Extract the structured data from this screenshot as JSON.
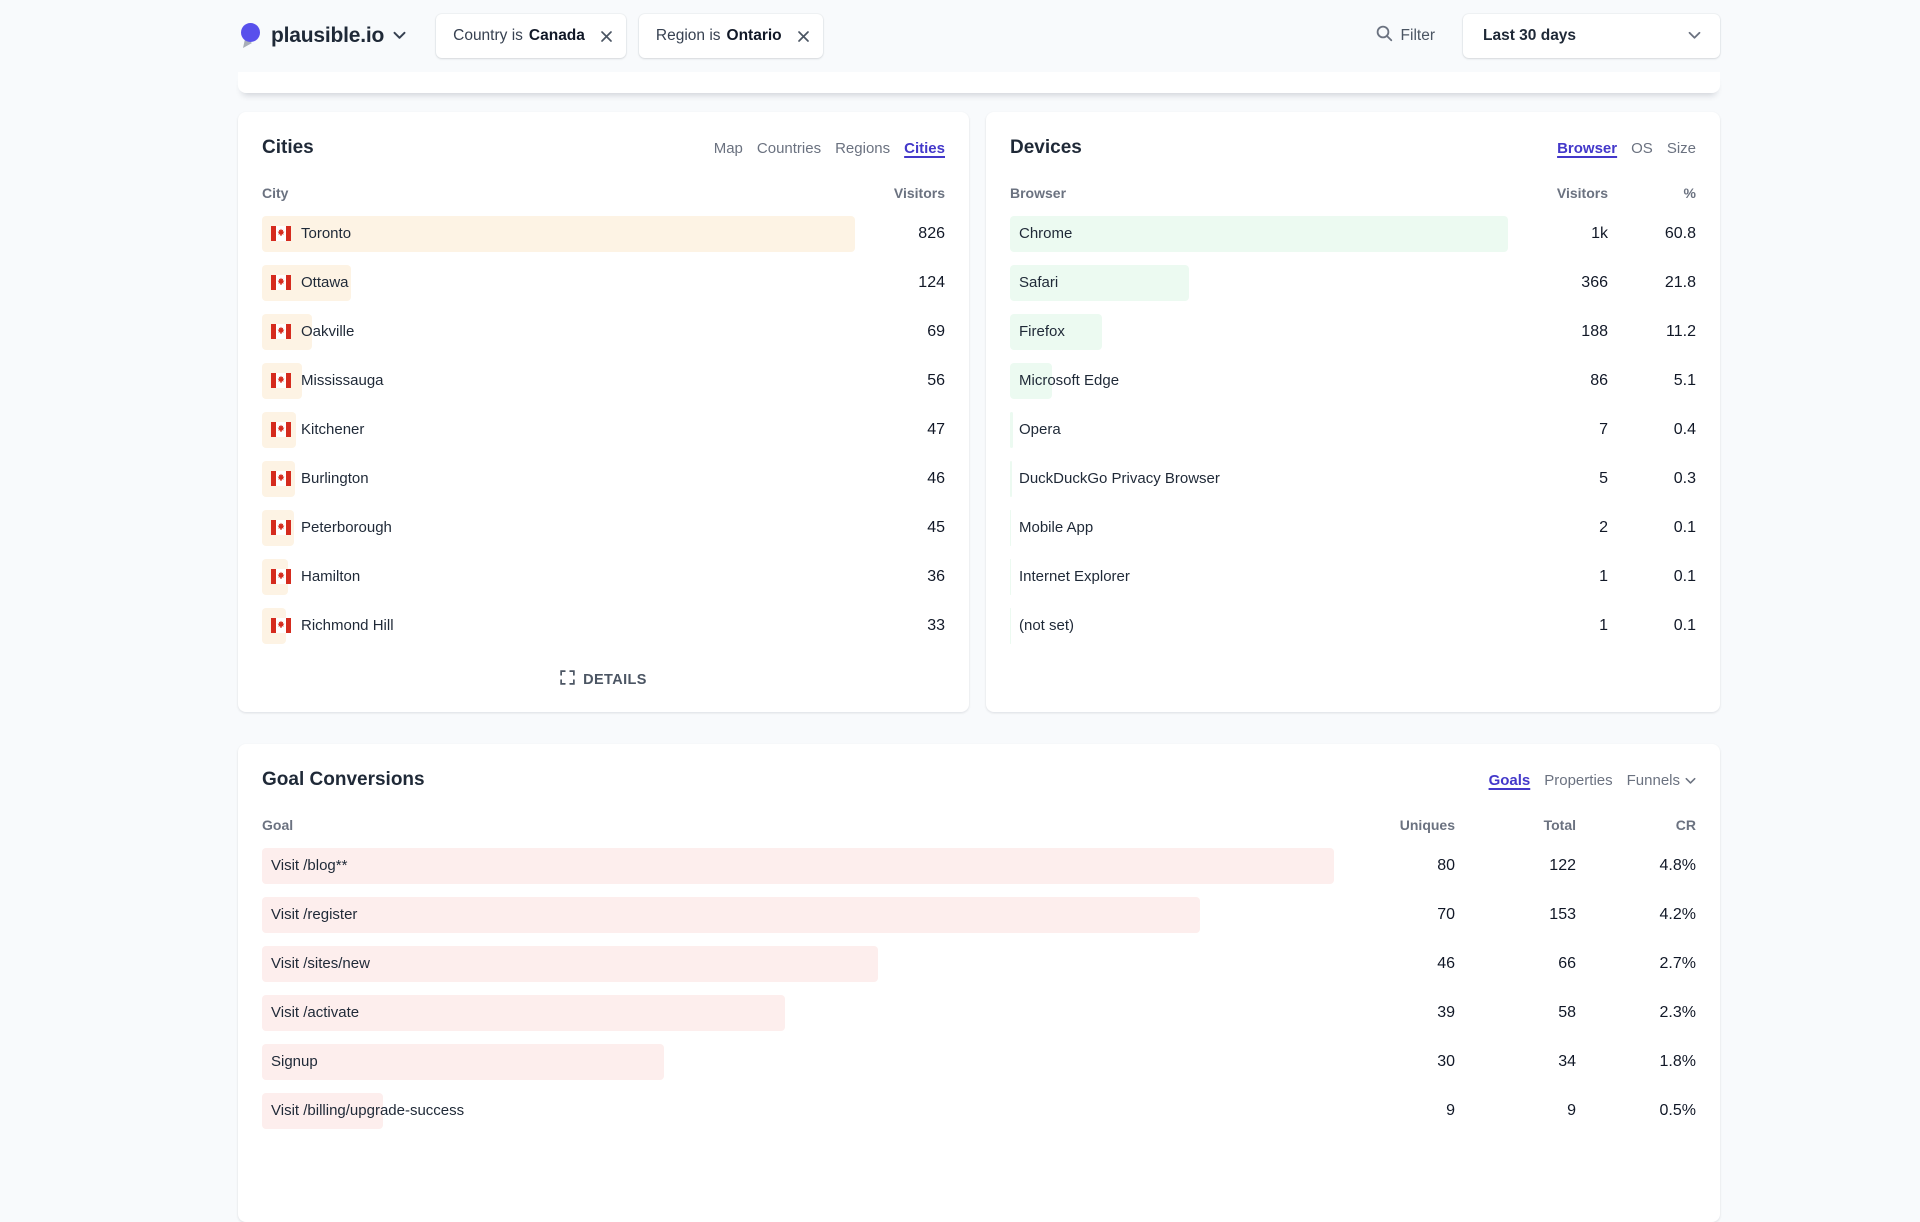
{
  "colors": {
    "accent": "#4338ca",
    "logo": "#5850ec",
    "page_bg": "#f8fafc",
    "city_bar": "#fdf3e4",
    "browser_bar": "#ecfaf1",
    "goal_bar": "#fdeeed"
  },
  "header": {
    "site_name": "plausible.io",
    "filter_chips": [
      {
        "prefix": "Country is ",
        "value": "Canada"
      },
      {
        "prefix": "Region is ",
        "value": "Ontario"
      }
    ],
    "filter_button": "Filter",
    "date_range": "Last 30 days"
  },
  "cities_panel": {
    "title": "Cities",
    "tabs": [
      "Map",
      "Countries",
      "Regions",
      "Cities"
    ],
    "active_tab": "Cities",
    "col_label": "City",
    "col_value": "Visitors",
    "details_label": "DETAILS",
    "rows": [
      {
        "name": "Toronto",
        "visitors": "826",
        "bar_pct": 100
      },
      {
        "name": "Ottawa",
        "visitors": "124",
        "bar_pct": 15
      },
      {
        "name": "Oakville",
        "visitors": "69",
        "bar_pct": 8.4
      },
      {
        "name": "Mississauga",
        "visitors": "56",
        "bar_pct": 6.8
      },
      {
        "name": "Kitchener",
        "visitors": "47",
        "bar_pct": 5.7
      },
      {
        "name": "Burlington",
        "visitors": "46",
        "bar_pct": 5.6
      },
      {
        "name": "Peterborough",
        "visitors": "45",
        "bar_pct": 5.4
      },
      {
        "name": "Hamilton",
        "visitors": "36",
        "bar_pct": 4.4
      },
      {
        "name": "Richmond Hill",
        "visitors": "33",
        "bar_pct": 4.0
      }
    ]
  },
  "devices_panel": {
    "title": "Devices",
    "tabs": [
      "Browser",
      "OS",
      "Size"
    ],
    "active_tab": "Browser",
    "col_label": "Browser",
    "col_visitors": "Visitors",
    "col_pct": "%",
    "rows": [
      {
        "name": "Chrome",
        "visitors": "1k",
        "pct": "60.8",
        "bar_pct": 100
      },
      {
        "name": "Safari",
        "visitors": "366",
        "pct": "21.8",
        "bar_pct": 35.9
      },
      {
        "name": "Firefox",
        "visitors": "188",
        "pct": "11.2",
        "bar_pct": 18.4
      },
      {
        "name": "Microsoft Edge",
        "visitors": "86",
        "pct": "5.1",
        "bar_pct": 8.4
      },
      {
        "name": "Opera",
        "visitors": "7",
        "pct": "0.4",
        "bar_pct": 0.7
      },
      {
        "name": "DuckDuckGo Privacy Browser",
        "visitors": "5",
        "pct": "0.3",
        "bar_pct": 0.5
      },
      {
        "name": "Mobile App",
        "visitors": "2",
        "pct": "0.1",
        "bar_pct": 0.25
      },
      {
        "name": "Internet Explorer",
        "visitors": "1",
        "pct": "0.1",
        "bar_pct": 0.15
      },
      {
        "name": "(not set)",
        "visitors": "1",
        "pct": "0.1",
        "bar_pct": 0.15
      }
    ]
  },
  "goals_panel": {
    "title": "Goal Conversions",
    "tabs": [
      "Goals",
      "Properties",
      "Funnels"
    ],
    "active_tab": "Goals",
    "dropdown_tab": "Funnels",
    "col_label": "Goal",
    "col_uniques": "Uniques",
    "col_total": "Total",
    "col_cr": "CR",
    "rows": [
      {
        "name": "Visit /blog**",
        "uniques": "80",
        "total": "122",
        "cr": "4.8%",
        "bar_pct": 100
      },
      {
        "name": "Visit /register",
        "uniques": "70",
        "total": "153",
        "cr": "4.2%",
        "bar_pct": 87.5
      },
      {
        "name": "Visit /sites/new",
        "uniques": "46",
        "total": "66",
        "cr": "2.7%",
        "bar_pct": 57.5
      },
      {
        "name": "Visit /activate",
        "uniques": "39",
        "total": "58",
        "cr": "2.3%",
        "bar_pct": 48.8
      },
      {
        "name": "Signup",
        "uniques": "30",
        "total": "34",
        "cr": "1.8%",
        "bar_pct": 37.5
      },
      {
        "name": "Visit /billing/upgrade-success",
        "uniques": "9",
        "total": "9",
        "cr": "0.5%",
        "bar_pct": 11.3
      }
    ]
  }
}
